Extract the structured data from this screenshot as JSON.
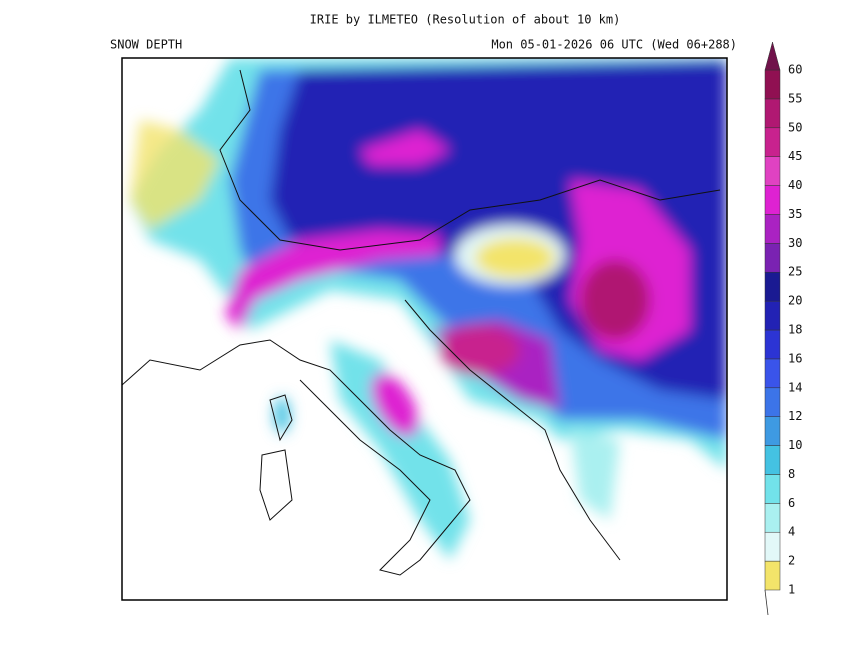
{
  "header": {
    "title": "IRIE by ILMETEO (Resolution of about 10 km)",
    "variable": "SNOW DEPTH",
    "valid_time": "Mon 05-01-2026 06 UTC (Wed 06+288)"
  },
  "colorbar": {
    "levels": [
      1,
      2,
      4,
      6,
      8,
      10,
      12,
      14,
      16,
      18,
      20,
      25,
      30,
      35,
      40,
      45,
      50,
      55,
      60
    ],
    "colors": [
      "#f3e46a",
      "#e2f8f8",
      "#aaf0f0",
      "#72e2ea",
      "#44c2e2",
      "#3e9ae2",
      "#3c74e8",
      "#3a54ea",
      "#2c34d4",
      "#2222b4",
      "#1a1a92",
      "#7a22b2",
      "#aa22c2",
      "#de22d2",
      "#e042c2",
      "#c8228e",
      "#b01872",
      "#901052",
      "#70124a"
    ]
  }
}
